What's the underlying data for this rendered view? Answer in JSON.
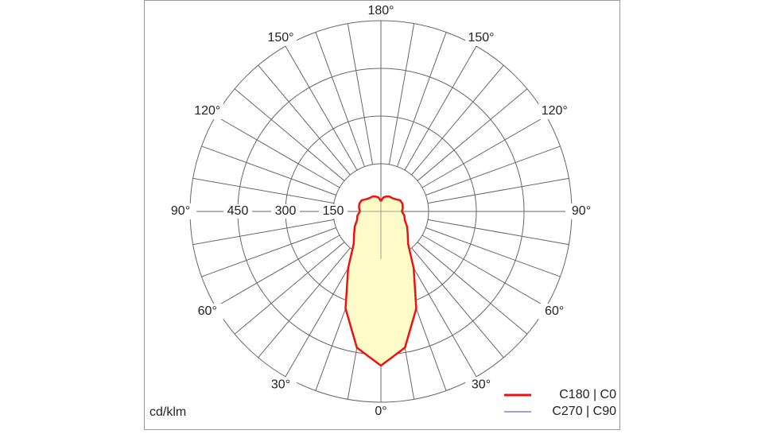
{
  "chart_data": {
    "type": "polar",
    "unit_label": "cd/klm",
    "rlim": [
      0,
      600
    ],
    "rticks": [
      150,
      300,
      450
    ],
    "angle_ticks": [
      {
        "value": 0,
        "label": "0°"
      },
      {
        "value": 30,
        "label": "30°"
      },
      {
        "value": 60,
        "label": "60°"
      },
      {
        "value": 90,
        "label": "90°"
      },
      {
        "value": 120,
        "label": "120°"
      },
      {
        "value": 150,
        "label": "150°"
      },
      {
        "value": 180,
        "label": "180°"
      }
    ],
    "angles": [
      0,
      10,
      20,
      30,
      40,
      50,
      60,
      70,
      80,
      90,
      100,
      110,
      120,
      130,
      140,
      150,
      160,
      170,
      180
    ],
    "series": [
      {
        "name": "C270 | C90",
        "color": "#3344cc",
        "values": [
          485,
          435,
          325,
          206,
          133,
          110,
          95,
          80,
          75,
          66,
          70,
          72,
          70,
          60,
          55,
          54,
          50,
          45,
          32
        ]
      },
      {
        "name": "C180 | C0",
        "color": "#ee1111",
        "values": [
          485,
          435,
          325,
          206,
          133,
          110,
          95,
          80,
          75,
          66,
          70,
          72,
          70,
          60,
          55,
          54,
          50,
          45,
          32
        ]
      }
    ],
    "fill_color": "#fdfbc8"
  }
}
